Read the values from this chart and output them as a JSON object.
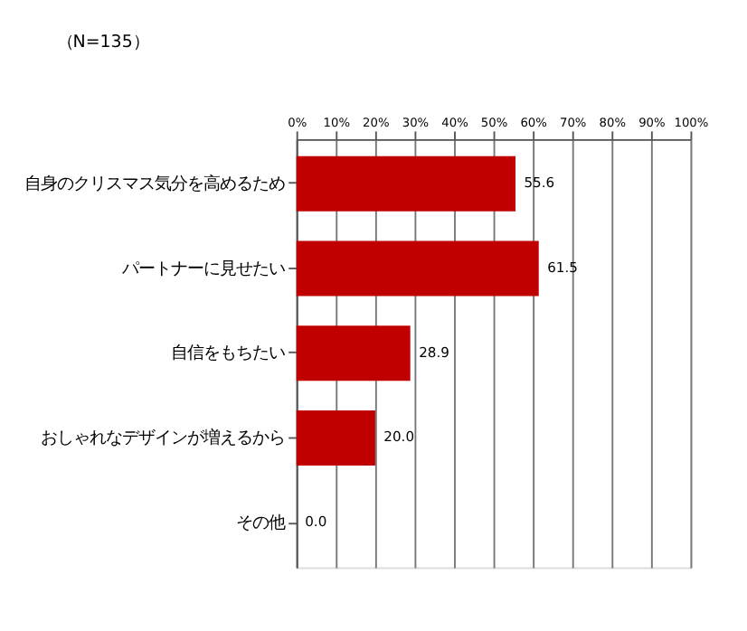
{
  "chart_data": {
    "type": "bar",
    "orientation": "horizontal",
    "categories": [
      "自身のクリスマス気分を高めるため",
      "パートナーに見せたい",
      "自信をもちたい",
      "おしゃれなデザインが増えるから",
      "その他"
    ],
    "values": [
      55.6,
      61.5,
      28.9,
      20.0,
      0.0
    ],
    "value_labels": [
      "55.6",
      "61.5",
      "28.9",
      "20.0",
      "0.0"
    ],
    "color": "#c00000",
    "xlim": [
      0,
      100
    ],
    "xticks": [
      {
        "value": 0,
        "label": "0%"
      },
      {
        "value": 10,
        "label": "10%"
      },
      {
        "value": 20,
        "label": "20%"
      },
      {
        "value": 30,
        "label": "30%"
      },
      {
        "value": 40,
        "label": "40%"
      },
      {
        "value": 50,
        "label": "50%"
      },
      {
        "value": 60,
        "label": "60%"
      },
      {
        "value": 70,
        "label": "70%"
      },
      {
        "value": 80,
        "label": "80%"
      },
      {
        "value": 90,
        "label": "90%"
      },
      {
        "value": 100,
        "label": "100%"
      }
    ],
    "grid": "x",
    "annotations": [
      "（N=135）"
    ]
  }
}
